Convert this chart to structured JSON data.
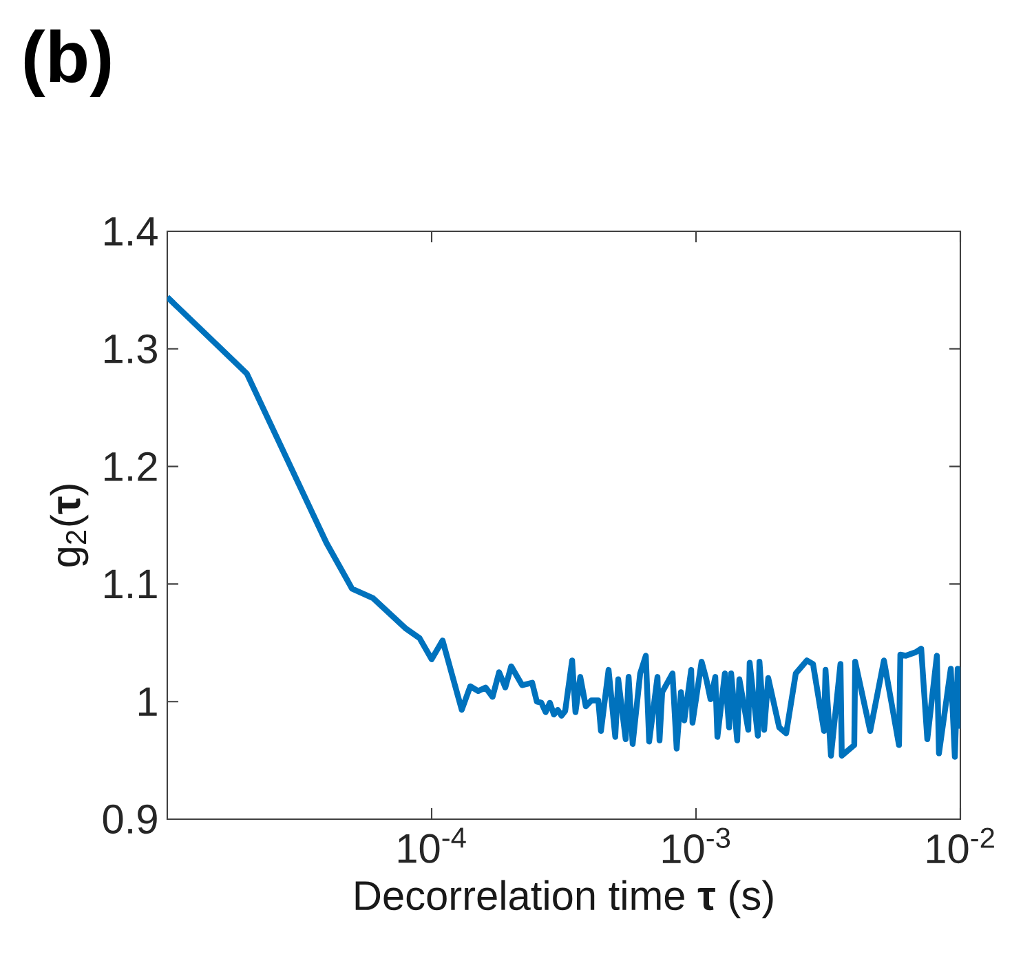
{
  "chart_data": {
    "type": "line",
    "title": "**(b)**",
    "xlabel": "Decorrelation time **τ** (s)",
    "ylabel": "g$_{2}$(**τ**)",
    "log": "x",
    "color": "#0072bd",
    "xlim": [
      1e-05,
      0.01
    ],
    "ylim": [
      0.9,
      1.4
    ],
    "xticks": [
      {
        "value": 0.0001,
        "label": "10$^{-4}$"
      },
      {
        "value": 0.001,
        "label": "10$^{-3}$"
      },
      {
        "value": 0.01,
        "label": "10$^{-2}$"
      }
    ],
    "yticks": [
      0.9,
      1,
      1.1,
      1.2,
      1.3,
      1.4
    ],
    "x": [
      1e-05,
      2e-05,
      4e-05,
      5e-05,
      6e-05,
      8e-05,
      9e-05,
      0.0001,
      0.00011,
      0.00013,
      0.00014,
      0.00015,
      0.00016,
      0.00017,
      0.00018,
      0.00019,
      0.0002,
      0.00022,
      0.00024,
      0.00025,
      0.00026,
      0.00027,
      0.00028,
      0.00029,
      0.0003,
      0.00031,
      0.00032,
      0.00034,
      0.00035,
      0.000365,
      0.000383,
      0.000402,
      0.000427,
      0.000437,
      0.000467,
      0.000495,
      0.000508,
      0.000542,
      0.000556,
      0.000576,
      0.000615,
      0.000646,
      0.000665,
      0.000715,
      0.000728,
      0.000745,
      0.000815,
      0.000845,
      0.000877,
      0.000903,
      0.000959,
      0.00097,
      0.00105,
      0.001094,
      0.001135,
      0.001183,
      0.001205,
      0.001286,
      0.001334,
      0.001358,
      0.001432,
      0.001459,
      0.001577,
      0.001596,
      0.001714,
      0.001738,
      0.001811,
      0.001876,
      0.002065,
      0.002193,
      0.002385,
      0.002626,
      0.002771,
      0.00305,
      0.00309,
      0.00324,
      0.00352,
      0.00356,
      0.00397,
      0.004,
      0.00456,
      0.00514,
      0.00586,
      0.00593,
      0.00622,
      0.00677,
      0.00711,
      0.0075,
      0.00815,
      0.0083,
      0.0092,
      0.00953,
      0.00977,
      0.01
    ],
    "values": [
      1.344,
      1.279,
      1.135,
      1.096,
      1.088,
      1.062,
      1.054,
      1.036,
      1.052,
      0.993,
      1.013,
      1.009,
      1.012,
      1.004,
      1.025,
      1.012,
      1.03,
      1.014,
      1.016,
      1.0,
      0.999,
      0.991,
      0.999,
      0.989,
      0.993,
      0.988,
      0.992,
      1.035,
      0.991,
      1.021,
      0.996,
      1.001,
      1.001,
      0.975,
      1.027,
      0.97,
      1.019,
      0.968,
      1.021,
      0.964,
      1.024,
      1.039,
      0.966,
      1.021,
      0.967,
      1.008,
      1.024,
      0.96,
      1.008,
      0.984,
      1.027,
      0.982,
      1.034,
      1.019,
      1.002,
      1.021,
      0.97,
      1.024,
      0.978,
      1.024,
      0.967,
      1.019,
      0.976,
      1.033,
      0.971,
      1.034,
      0.976,
      1.02,
      0.978,
      0.973,
      1.024,
      1.035,
      1.032,
      0.975,
      1.027,
      0.954,
      1.032,
      0.954,
      0.963,
      1.034,
      0.975,
      1.035,
      0.963,
      1.04,
      1.039,
      1.042,
      1.045,
      0.968,
      1.039,
      0.956,
      1.028,
      0.953,
      1.028,
      0.977
    ]
  }
}
